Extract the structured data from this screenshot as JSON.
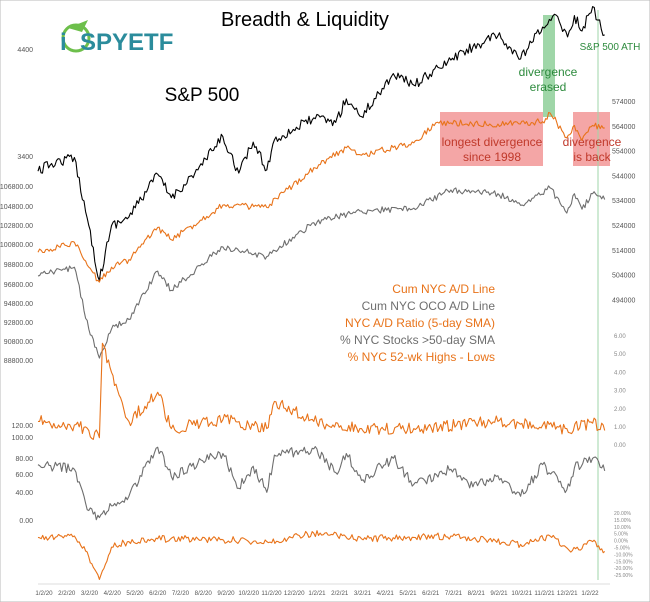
{
  "logo": {
    "text": "SPYETF",
    "prefix": "i"
  },
  "chart_data": {
    "type": "line",
    "title": "Breadth & Liquidity",
    "subtitle": "S&P 500",
    "x_ticks": [
      "1/2/20",
      "2/2/20",
      "3/2/20",
      "4/2/20",
      "5/2/20",
      "6/2/20",
      "7/2/20",
      "8/2/20",
      "9/2/20",
      "10/2/20",
      "11/2/20",
      "12/2/20",
      "1/2/21",
      "2/2/21",
      "3/2/21",
      "4/2/21",
      "5/2/21",
      "6/2/21",
      "7/2/21",
      "8/2/21",
      "9/2/21",
      "10/2/21",
      "11/2/21",
      "12/2/21",
      "1/2/22"
    ],
    "left_axis_labels": [
      "4400",
      "3400",
      "106800.00",
      "104800.00",
      "102800.00",
      "100800.00",
      "98800.00",
      "96800.00",
      "94800.00",
      "92800.00",
      "90800.00",
      "88800.00",
      "120.00",
      "100.00",
      "80.00",
      "60.00",
      "40.00",
      "0.00"
    ],
    "right_axis_labels": [
      "574000",
      "564000",
      "554000",
      "544000",
      "534000",
      "524000",
      "514000",
      "504000",
      "494000"
    ],
    "ratio_axis_labels": [
      "6.00",
      "5.00",
      "4.00",
      "3.00",
      "2.00",
      "1.00",
      "0.00"
    ],
    "hl_axis_labels": [
      "20.00%",
      "15.00%",
      "10.00%",
      "5.00%",
      "0.00%",
      "-5.00%",
      "-10.00%",
      "-15.00%",
      "-20.00%",
      "-25.00%"
    ],
    "series": [
      {
        "name": "S&P 500",
        "color": "#000000",
        "points": [
          [
            "1/2/20",
            3258
          ],
          [
            "1/20/20",
            3330
          ],
          [
            "2/19/20",
            3386
          ],
          [
            "3/9/20",
            2750
          ],
          [
            "3/23/20",
            2237
          ],
          [
            "4/8/20",
            2750
          ],
          [
            "5/1/20",
            2830
          ],
          [
            "6/8/20",
            3230
          ],
          [
            "6/26/20",
            3010
          ],
          [
            "7/31/20",
            3270
          ],
          [
            "9/2/20",
            3580
          ],
          [
            "9/23/20",
            3240
          ],
          [
            "10/12/20",
            3530
          ],
          [
            "10/30/20",
            3270
          ],
          [
            "11/9/20",
            3550
          ],
          [
            "12/31/20",
            3756
          ],
          [
            "1/29/21",
            3714
          ],
          [
            "2/12/21",
            3934
          ],
          [
            "3/4/21",
            3768
          ],
          [
            "4/15/21",
            4170
          ],
          [
            "5/12/21",
            4063
          ],
          [
            "6/30/21",
            4297
          ],
          [
            "7/29/21",
            4420
          ],
          [
            "8/31/21",
            4522
          ],
          [
            "9/30/21",
            4307
          ],
          [
            "10/29/21",
            4605
          ],
          [
            "11/18/21",
            4704
          ],
          [
            "12/1/21",
            4513
          ],
          [
            "12/10/21",
            4712
          ],
          [
            "12/20/21",
            4568
          ],
          [
            "1/3/22",
            4796
          ],
          [
            "1/10/22",
            4670
          ],
          [
            "1/19/22",
            4532
          ]
        ]
      },
      {
        "name": "Cum NYC A/D Line",
        "color": "#e8731a",
        "points": [
          [
            "1/2/20",
            514000
          ],
          [
            "2/19/20",
            518000
          ],
          [
            "3/9/20",
            508000
          ],
          [
            "3/23/20",
            502000
          ],
          [
            "4/8/20",
            508000
          ],
          [
            "5/1/20",
            511000
          ],
          [
            "6/8/20",
            524000
          ],
          [
            "6/26/20",
            519000
          ],
          [
            "9/2/20",
            533000
          ],
          [
            "10/30/20",
            532000
          ],
          [
            "12/31/20",
            548000
          ],
          [
            "2/12/21",
            556000
          ],
          [
            "3/4/21",
            553000
          ],
          [
            "5/12/21",
            558000
          ],
          [
            "6/10/21",
            566000
          ],
          [
            "6/30/21",
            566000
          ],
          [
            "8/31/21",
            565500
          ],
          [
            "10/29/21",
            566500
          ],
          [
            "11/8/21",
            570000
          ],
          [
            "11/30/21",
            560000
          ],
          [
            "12/10/21",
            565000
          ],
          [
            "12/20/21",
            559000
          ],
          [
            "1/3/22",
            565000
          ],
          [
            "1/19/22",
            564000
          ]
        ]
      },
      {
        "name": "Cum NYC OCO A/D Line",
        "color": "#6e6e6e",
        "points": [
          [
            "1/2/20",
            97500
          ],
          [
            "2/19/20",
            98400
          ],
          [
            "3/9/20",
            92000
          ],
          [
            "3/23/20",
            89000
          ],
          [
            "4/8/20",
            92000
          ],
          [
            "5/1/20",
            93000
          ],
          [
            "6/8/20",
            98000
          ],
          [
            "6/26/20",
            96000
          ],
          [
            "9/2/20",
            100500
          ],
          [
            "10/30/20",
            99500
          ],
          [
            "12/31/20",
            103000
          ],
          [
            "3/4/21",
            104200
          ],
          [
            "5/12/21",
            104500
          ],
          [
            "6/30/21",
            106400
          ],
          [
            "8/31/21",
            106000
          ],
          [
            "9/30/21",
            104800
          ],
          [
            "11/8/21",
            106600
          ],
          [
            "11/30/21",
            104000
          ],
          [
            "12/10/21",
            106000
          ],
          [
            "12/20/21",
            104400
          ],
          [
            "1/3/22",
            106000
          ],
          [
            "1/19/22",
            105400
          ]
        ]
      },
      {
        "name": "NYC A/D Ratio (5-day SMA)",
        "color": "#e8731a",
        "points": [
          [
            "1/2/20",
            1.3
          ],
          [
            "2/19/20",
            1.1
          ],
          [
            "3/9/20",
            0.8
          ],
          [
            "3/23/20",
            0.4
          ],
          [
            "3/27/20",
            5.6
          ],
          [
            "4/8/20",
            4.0
          ],
          [
            "4/20/20",
            2.6
          ],
          [
            "5/1/20",
            1.3
          ],
          [
            "6/8/20",
            2.9
          ],
          [
            "6/26/20",
            0.9
          ],
          [
            "9/2/20",
            1.4
          ],
          [
            "10/30/20",
            0.9
          ],
          [
            "11/9/20",
            2.4
          ],
          [
            "12/31/20",
            1.3
          ],
          [
            "3/4/21",
            0.9
          ],
          [
            "5/12/21",
            0.9
          ],
          [
            "8/31/21",
            1.3
          ],
          [
            "11/30/21",
            0.9
          ],
          [
            "1/3/22",
            1.2
          ],
          [
            "1/19/22",
            0.8
          ]
        ]
      },
      {
        "name": "% NYC Stocks >50-day SMA",
        "color": "#6e6e6e",
        "points": [
          [
            "1/2/20",
            70
          ],
          [
            "2/19/20",
            64
          ],
          [
            "3/9/20",
            12
          ],
          [
            "3/23/20",
            3
          ],
          [
            "4/8/20",
            18
          ],
          [
            "5/1/20",
            30
          ],
          [
            "6/8/20",
            92
          ],
          [
            "6/26/20",
            55
          ],
          [
            "7/31/20",
            72
          ],
          [
            "9/2/20",
            84
          ],
          [
            "9/23/20",
            40
          ],
          [
            "10/12/20",
            68
          ],
          [
            "10/30/20",
            35
          ],
          [
            "11/9/20",
            82
          ],
          [
            "12/31/20",
            90
          ],
          [
            "1/29/21",
            60
          ],
          [
            "2/12/21",
            84
          ],
          [
            "3/4/21",
            50
          ],
          [
            "4/15/21",
            78
          ],
          [
            "5/12/21",
            45
          ],
          [
            "6/30/21",
            64
          ],
          [
            "7/29/21",
            42
          ],
          [
            "8/31/21",
            56
          ],
          [
            "9/30/21",
            30
          ],
          [
            "10/29/21",
            70
          ],
          [
            "11/30/21",
            38
          ],
          [
            "12/10/21",
            66
          ],
          [
            "1/3/22",
            78
          ],
          [
            "1/19/22",
            62
          ]
        ]
      },
      {
        "name": "% NYC 52-wk Highs - Lows",
        "color": "#e8731a",
        "points": [
          [
            "1/2/20",
            4
          ],
          [
            "2/19/20",
            5
          ],
          [
            "3/9/20",
            -10
          ],
          [
            "3/23/20",
            -26
          ],
          [
            "4/8/20",
            -3
          ],
          [
            "5/1/20",
            1
          ],
          [
            "6/8/20",
            3
          ],
          [
            "7/31/20",
            3
          ],
          [
            "10/30/20",
            1
          ],
          [
            "12/31/20",
            7
          ],
          [
            "3/4/21",
            3
          ],
          [
            "5/12/21",
            4
          ],
          [
            "6/30/21",
            5
          ],
          [
            "9/30/21",
            -1
          ],
          [
            "11/8/21",
            5
          ],
          [
            "12/1/21",
            -4
          ],
          [
            "12/20/21",
            -4
          ],
          [
            "1/3/22",
            1
          ],
          [
            "1/19/22",
            -6
          ]
        ]
      }
    ],
    "legend": [
      "Cum NYC A/D Line",
      "Cum NYC OCO A/D Line",
      "NYC A/D Ratio (5-day SMA)",
      "% NYC Stocks >50-day SMA",
      "% NYC 52-wk Highs - Lows"
    ],
    "annotations": {
      "divergence_erased": [
        "divergence",
        "erased"
      ],
      "longest_divergence": [
        "longest divergence",
        "since 1998"
      ],
      "divergence_back": [
        "divergence",
        "is back"
      ],
      "ath": "S&P 500 ATH"
    },
    "annotation_colors": {
      "green": "#2e8b3e",
      "red": "#c0392b",
      "red_band": "#f4a6a6",
      "green_band": "#9fd6a8"
    }
  }
}
